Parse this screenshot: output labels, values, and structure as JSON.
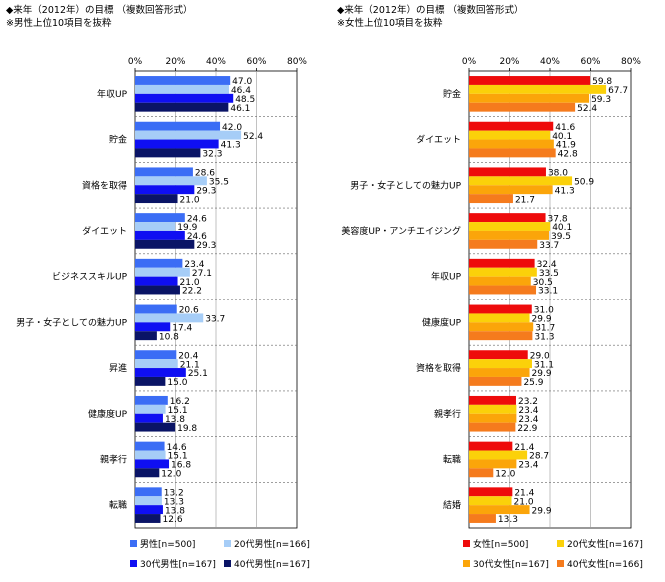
{
  "panels": [
    {
      "title": "◆来年（2012年）の目標 （複数回答形式）",
      "subtitle": "※男性上位10項目を抜粋"
    },
    {
      "title": "◆来年（2012年）の目標 （複数回答形式）",
      "subtitle": "※女性上位10項目を抜粋"
    }
  ],
  "chart_data": [
    {
      "type": "bar",
      "orientation": "horizontal",
      "title": "◆来年（2012年）の目標 （複数回答形式）",
      "subtitle": "※男性上位10項目を抜粋",
      "xlim": [
        0,
        80
      ],
      "ticks": [
        "0%",
        "20%",
        "40%",
        "60%",
        "80%"
      ],
      "categories": [
        "年収UP",
        "貯金",
        "資格を取得",
        "ダイエット",
        "ビジネススキルUP",
        "男子・女子としての魅力UP",
        "昇進",
        "健康度UP",
        "親孝行",
        "転職"
      ],
      "series": [
        {
          "name": "男性[n=500]",
          "color": "#3b6df5",
          "values": [
            47.0,
            42.0,
            28.6,
            24.6,
            23.4,
            20.6,
            20.4,
            16.2,
            14.6,
            13.2
          ]
        },
        {
          "name": "20代男性[n=166]",
          "color": "#a6cdf7",
          "values": [
            46.4,
            52.4,
            35.5,
            19.9,
            27.1,
            33.7,
            21.1,
            15.1,
            15.1,
            13.3
          ]
        },
        {
          "name": "30代男性[n=167]",
          "color": "#0f0ff2",
          "values": [
            48.5,
            41.3,
            29.3,
            24.6,
            21.0,
            17.4,
            25.1,
            13.8,
            16.8,
            13.8
          ]
        },
        {
          "name": "40代男性[n=167]",
          "color": "#0a1466",
          "values": [
            46.1,
            32.3,
            21.0,
            29.3,
            22.2,
            10.8,
            15.0,
            19.8,
            12.0,
            12.6
          ]
        }
      ],
      "legend_position": "bottom"
    },
    {
      "type": "bar",
      "orientation": "horizontal",
      "title": "◆来年（2012年）の目標 （複数回答形式）",
      "subtitle": "※女性上位10項目を抜粋",
      "xlim": [
        0,
        80
      ],
      "ticks": [
        "0%",
        "20%",
        "40%",
        "60%",
        "80%"
      ],
      "categories": [
        "貯金",
        "ダイエット",
        "男子・女子としての魅力UP",
        "美容度UP・アンチエイジング",
        "年収UP",
        "健康度UP",
        "資格を取得",
        "親孝行",
        "転職",
        "結婚"
      ],
      "series": [
        {
          "name": "女性[n=500]",
          "color": "#ee0b0b",
          "values": [
            59.8,
            41.6,
            38.0,
            37.8,
            32.4,
            31.0,
            29.0,
            23.2,
            21.4,
            21.4
          ]
        },
        {
          "name": "20代女性[n=167]",
          "color": "#fbd10a",
          "values": [
            67.7,
            40.1,
            50.9,
            40.1,
            33.5,
            29.9,
            31.1,
            23.4,
            28.7,
            21.0
          ]
        },
        {
          "name": "30代女性[n=167]",
          "color": "#fba50a",
          "values": [
            59.3,
            41.9,
            41.3,
            39.5,
            30.5,
            31.7,
            29.9,
            23.4,
            23.4,
            29.9
          ]
        },
        {
          "name": "40代女性[n=166]",
          "color": "#f57b1d",
          "values": [
            52.4,
            42.8,
            21.7,
            33.7,
            33.1,
            31.3,
            25.9,
            22.9,
            12.0,
            13.3
          ]
        }
      ],
      "legend_position": "bottom"
    }
  ]
}
